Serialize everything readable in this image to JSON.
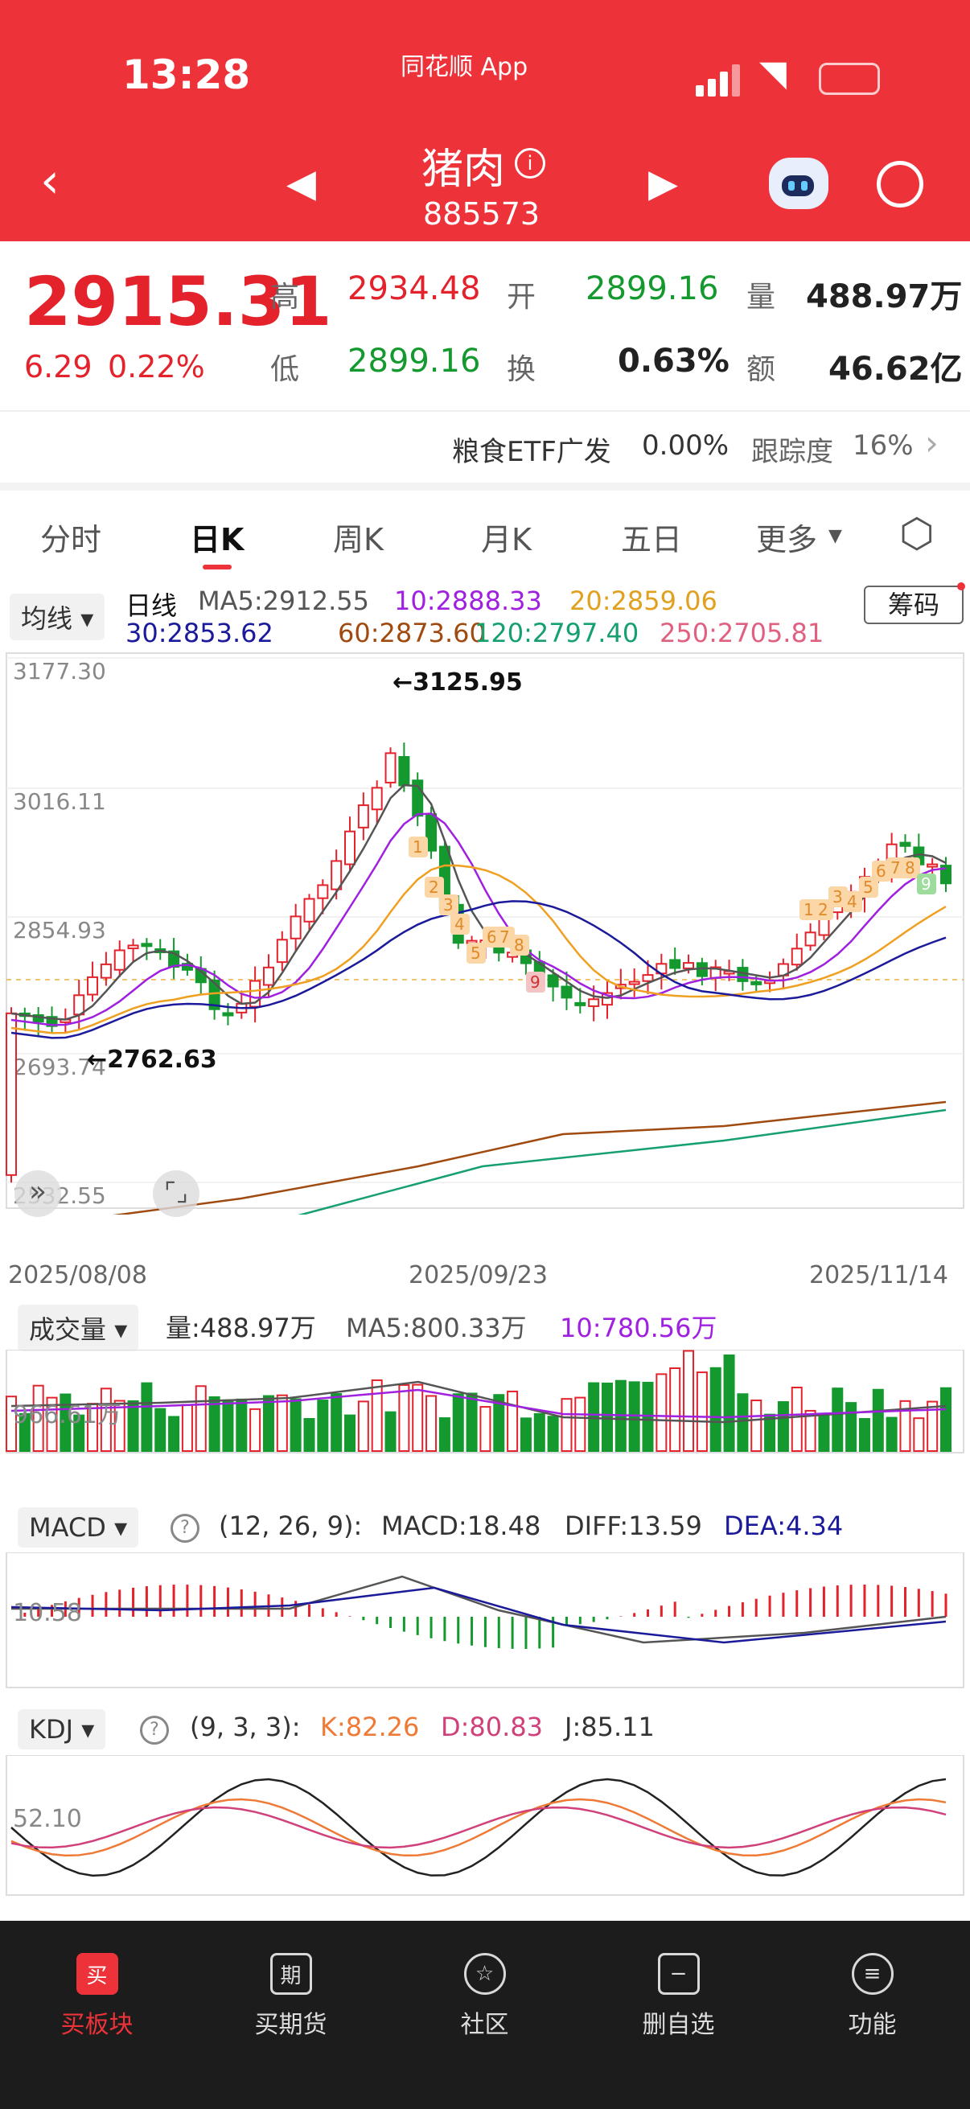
{
  "status_bar": {
    "time": "13:28",
    "app": "同花顺 App"
  },
  "header": {
    "title": "猪肉",
    "code": "885573"
  },
  "quote": {
    "price": "2915.31",
    "change": "6.29",
    "change_pct": "0.22%",
    "high_label": "高",
    "high": "2934.48",
    "open_label": "开",
    "open": "2899.16",
    "vol_label": "量",
    "vol": "488.97万",
    "low_label": "低",
    "low": "2899.16",
    "turn_label": "换",
    "turn": "0.63%",
    "amt_label": "额",
    "amt": "46.62亿"
  },
  "etf": {
    "name": "粮食ETF广发",
    "pct": "0.00%",
    "track_label": "跟踪度",
    "track": "16%"
  },
  "tabs": [
    "分时",
    "日K",
    "周K",
    "月K",
    "五日",
    "更多"
  ],
  "active_tab": "日K",
  "ma_panel": {
    "selector": "均线",
    "period": "日线",
    "chip_button": "筹码",
    "ma5": "MA5:2912.55",
    "ma10": "10:2888.33",
    "ma20": "20:2859.06",
    "ma30": "30:2853.62",
    "ma60": "60:2873.60",
    "ma120": "120:2797.40",
    "ma250": "250:2705.81"
  },
  "price_axis": [
    "3177.30",
    "3016.11",
    "2854.93",
    "2693.74",
    "2532.55"
  ],
  "annotations": {
    "high_marker": "←3125.95",
    "low_marker": "←2762.63"
  },
  "date_axis": [
    "2025/08/08",
    "2025/09/23",
    "2025/11/14"
  ],
  "volume_panel": {
    "selector": "成交量",
    "vol": "量:488.97万",
    "ma5": "MA5:800.33万",
    "ma10": "10:780.56万",
    "axis": "966.61万"
  },
  "macd_panel": {
    "selector": "MACD",
    "params": "(12, 26, 9):",
    "macd": "MACD:18.48",
    "diff": "DIFF:13.59",
    "dea": "DEA:4.34",
    "axis": "10.58"
  },
  "kdj_panel": {
    "selector": "KDJ",
    "params": "(9, 3, 3):",
    "k": "K:82.26",
    "d": "D:80.83",
    "j": "J:85.11",
    "axis": "52.10"
  },
  "td_labels": [
    "1",
    "2",
    "3",
    "4",
    "5",
    "6",
    "7",
    "8",
    "9",
    "1",
    "2",
    "3",
    "4",
    "5",
    "6",
    "7",
    "8",
    "9"
  ],
  "bottom_nav": [
    {
      "label": "买板块",
      "icon": "买"
    },
    {
      "label": "买期货",
      "icon": "期"
    },
    {
      "label": "社区",
      "icon": "☆"
    },
    {
      "label": "删自选",
      "icon": "−"
    },
    {
      "label": "功能",
      "icon": "≡"
    }
  ],
  "colors": {
    "up": "#e4222c",
    "down": "#14992f",
    "header": "#ee3239",
    "ma5": "#555555",
    "ma10": "#a020e0",
    "ma20": "#f0a020",
    "ma30": "#1a1a9a",
    "ma60": "#a04a10",
    "ma120": "#16a070",
    "ma250": "#e06080"
  }
}
